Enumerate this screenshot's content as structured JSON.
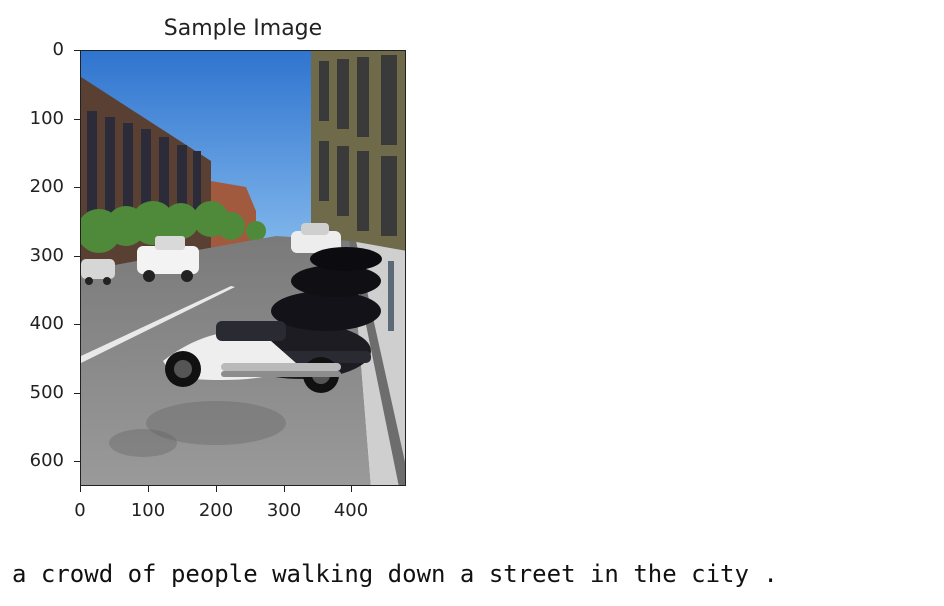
{
  "figure": {
    "title": "Sample Image",
    "y_ticks": [
      "0",
      "100",
      "200",
      "300",
      "400",
      "500",
      "600"
    ],
    "x_ticks": [
      "0",
      "100",
      "200",
      "300",
      "400"
    ]
  },
  "caption": "a crowd of people walking down a street in the city .",
  "scene": {
    "sky_color": "#3f86d6",
    "road_color": "#8c8c8c",
    "sidewalk_color": "#cfcfcf",
    "building_left_color": "#5a4032",
    "building_right_color": "#6f6a4a",
    "trees_color": "#4f8a3a",
    "motorcycle_color": "#1c1c22"
  }
}
